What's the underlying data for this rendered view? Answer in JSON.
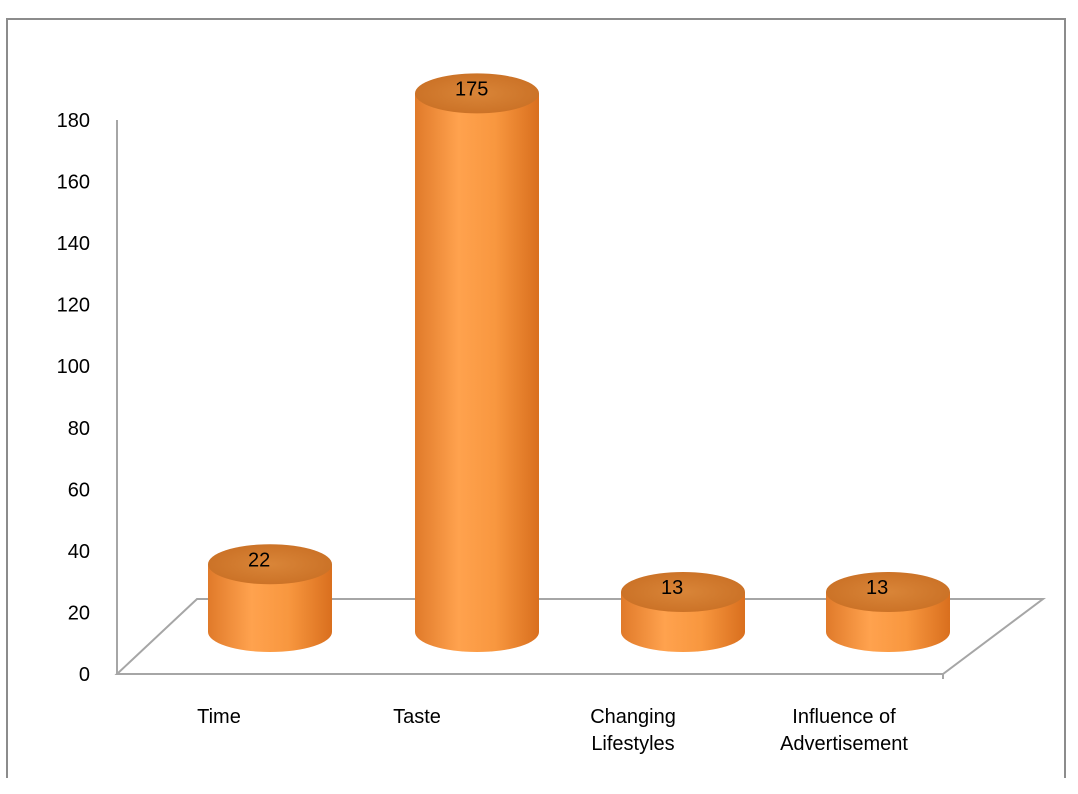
{
  "chart_data": {
    "type": "bar",
    "categories": [
      "Time",
      "Taste",
      "Changing Lifestyles",
      "Influence of Advertisement"
    ],
    "values": [
      22,
      175,
      13,
      13
    ],
    "data_labels": [
      "22",
      "175",
      "13",
      "13"
    ],
    "ylim": [
      0,
      180
    ],
    "yticks": [
      0,
      20,
      40,
      60,
      80,
      100,
      120,
      140,
      160,
      180
    ],
    "grid": false,
    "bar_color": "#f39a45",
    "bar_top_color": "#d9782c",
    "bar_style": "3d-cylinder"
  }
}
